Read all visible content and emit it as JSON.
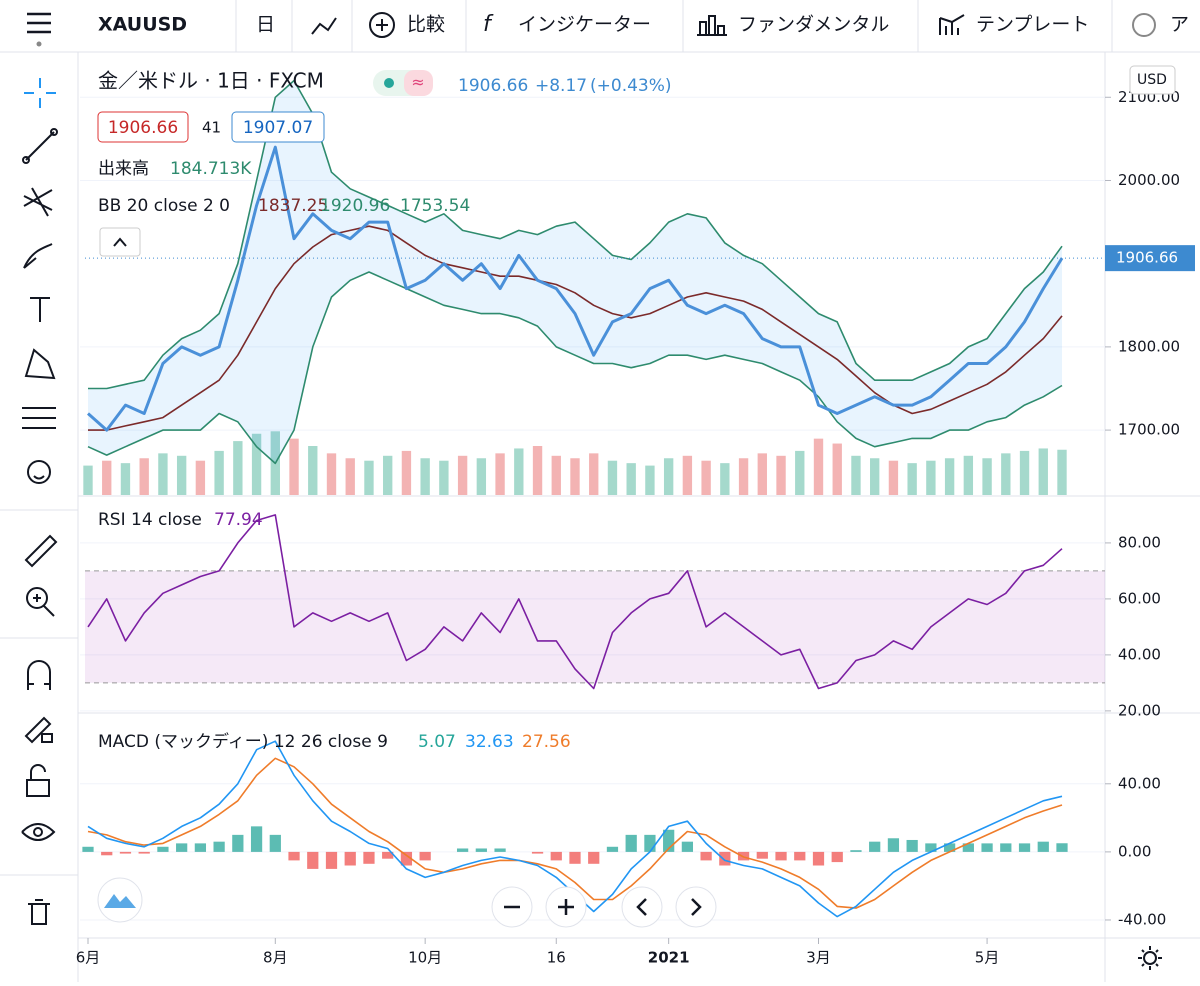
{
  "toolbar": {
    "symbol": "XAUUSD",
    "interval": "日",
    "compare": "比較",
    "indicators": "インジケーター",
    "fundamentals": "ファンダメンタル",
    "templates": "テンプレート",
    "alert": "ア"
  },
  "legend": {
    "instrument": "金／米ドル · 1日 · FXCM",
    "last": "1906.66",
    "change": "+8.17",
    "change_pct": "(+0.43%)",
    "bid": "1906.66",
    "spread": "41",
    "ask": "1907.07",
    "volume_name": "出来高",
    "volume_value": "184.713K",
    "bb_name": "BB 20 close 2 0",
    "bb_basis": "1837.25",
    "bb_upper": "1920.96",
    "bb_lower": "1753.54",
    "rsi_name": "RSI 14 close",
    "rsi_value": "77.94",
    "macd_name": "MACD (マックディー) 12 26 close 9",
    "macd_hist": "5.07",
    "macd_value": "32.63",
    "macd_signal": "27.56",
    "currency": "USD",
    "price_tag": "1906.66"
  },
  "chart_data": [
    {
      "type": "line",
      "categories": [
        "6月",
        null,
        null,
        null,
        null,
        null,
        null,
        null,
        null,
        null,
        "8月",
        null,
        null,
        null,
        null,
        null,
        null,
        null,
        "10月",
        null,
        null,
        null,
        null,
        null,
        null,
        "16",
        null,
        null,
        null,
        null,
        null,
        "2021",
        null,
        null,
        null,
        null,
        null,
        null,
        null,
        "3月",
        null,
        null,
        null,
        null,
        null,
        null,
        null,
        null,
        "5月",
        null,
        null,
        null,
        null
      ],
      "ylim": [
        1622,
        2152
      ],
      "yticks": [
        {
          "value": 1700,
          "label": "1700.00"
        },
        {
          "value": 1800,
          "label": "1800.00"
        },
        {
          "value": 2000,
          "label": "2000.00"
        },
        {
          "value": 2100,
          "label": "2100.00"
        }
      ],
      "series": [
        {
          "name": "close",
          "color": "#4a90d9",
          "values": [
            1720,
            1700,
            1730,
            1720,
            1780,
            1800,
            1790,
            1800,
            1880,
            1970,
            2040,
            1930,
            1960,
            1940,
            1930,
            1950,
            1950,
            1870,
            1880,
            1900,
            1880,
            1900,
            1870,
            1910,
            1880,
            1870,
            1840,
            1790,
            1830,
            1840,
            1870,
            1880,
            1850,
            1840,
            1850,
            1840,
            1810,
            1800,
            1800,
            1730,
            1720,
            1730,
            1740,
            1730,
            1730,
            1740,
            1760,
            1780,
            1780,
            1800,
            1830,
            1870,
            1906.66
          ]
        },
        {
          "name": "basis",
          "color": "#7b2a2a",
          "values": [
            1700,
            1700,
            1705,
            1710,
            1715,
            1730,
            1745,
            1760,
            1790,
            1830,
            1870,
            1900,
            1920,
            1935,
            1940,
            1945,
            1940,
            1925,
            1910,
            1900,
            1895,
            1890,
            1885,
            1885,
            1880,
            1875,
            1865,
            1850,
            1840,
            1835,
            1840,
            1850,
            1860,
            1865,
            1860,
            1855,
            1845,
            1830,
            1815,
            1800,
            1785,
            1765,
            1745,
            1730,
            1720,
            1725,
            1735,
            1745,
            1755,
            1770,
            1790,
            1810,
            1837.25
          ]
        },
        {
          "name": "upper",
          "color": "#2e8b6e",
          "values": [
            1750,
            1750,
            1755,
            1760,
            1790,
            1810,
            1820,
            1840,
            1900,
            2000,
            2100,
            2120,
            2080,
            2010,
            1990,
            1980,
            1970,
            1960,
            1950,
            1960,
            1940,
            1935,
            1930,
            1940,
            1935,
            1945,
            1950,
            1930,
            1910,
            1905,
            1925,
            1950,
            1960,
            1955,
            1925,
            1910,
            1900,
            1880,
            1860,
            1840,
            1830,
            1780,
            1760,
            1760,
            1760,
            1770,
            1780,
            1800,
            1810,
            1840,
            1870,
            1890,
            1920.96
          ]
        },
        {
          "name": "lower",
          "color": "#2e8b6e",
          "values": [
            1680,
            1670,
            1680,
            1690,
            1700,
            1700,
            1700,
            1720,
            1710,
            1680,
            1660,
            1700,
            1800,
            1860,
            1880,
            1890,
            1880,
            1870,
            1860,
            1850,
            1845,
            1840,
            1840,
            1835,
            1825,
            1800,
            1790,
            1780,
            1780,
            1775,
            1780,
            1790,
            1790,
            1785,
            1790,
            1785,
            1780,
            1770,
            1760,
            1740,
            1710,
            1690,
            1680,
            1685,
            1690,
            1690,
            1700,
            1700,
            1710,
            1715,
            1730,
            1740,
            1753.54
          ]
        }
      ],
      "band_fill": "#2196f3"
    },
    {
      "type": "bar",
      "ylim": [
        0,
        1800
      ],
      "up_color": "#8fcfbf",
      "down_color": "#f0a0a0",
      "values": [
        120,
        140,
        130,
        150,
        170,
        160,
        140,
        180,
        220,
        250,
        260,
        230,
        200,
        170,
        150,
        140,
        160,
        180,
        150,
        140,
        160,
        150,
        170,
        190,
        200,
        160,
        150,
        170,
        140,
        130,
        120,
        150,
        160,
        140,
        130,
        150,
        170,
        160,
        180,
        230,
        210,
        160,
        150,
        140,
        130,
        140,
        150,
        160,
        150,
        170,
        180,
        190,
        184.713
      ]
    },
    {
      "type": "line",
      "ylim": [
        19.6,
        96.4
      ],
      "yticks": [
        {
          "value": 20,
          "label": "20.00"
        },
        {
          "value": 40,
          "label": "40.00"
        },
        {
          "value": 60,
          "label": "60.00"
        },
        {
          "value": 80,
          "label": "80.00"
        }
      ],
      "band_levels": [
        30,
        70
      ],
      "band_color": "#9c27b0",
      "series": [
        {
          "name": "RSI",
          "color": "#7b1fa2",
          "values": [
            50,
            60,
            45,
            55,
            62,
            65,
            68,
            70,
            80,
            88,
            90,
            50,
            55,
            52,
            55,
            52,
            55,
            38,
            42,
            50,
            45,
            55,
            48,
            60,
            45,
            45,
            35,
            28,
            48,
            55,
            60,
            62,
            70,
            50,
            55,
            50,
            45,
            40,
            42,
            28,
            30,
            38,
            40,
            45,
            42,
            50,
            55,
            60,
            58,
            62,
            70,
            72,
            77.94
          ]
        }
      ]
    },
    {
      "type": "line",
      "ylim": [
        -50,
        81
      ],
      "yticks": [
        {
          "value": -40,
          "label": "-40.00"
        },
        {
          "value": 0,
          "label": "0.00"
        },
        {
          "value": 40,
          "label": "40.00"
        }
      ],
      "histogram": {
        "up_color": "#26a69a",
        "down_color": "#ef5350",
        "values": [
          3,
          -2,
          -1,
          -1,
          3,
          5,
          5,
          6,
          10,
          15,
          10,
          -5,
          -10,
          -10,
          -8,
          -7,
          -4,
          -8,
          -5,
          0,
          2,
          2,
          2,
          0,
          -1,
          -5,
          -7,
          -7,
          3,
          10,
          10,
          13,
          6,
          -5,
          -8,
          -5,
          -4,
          -5,
          -5,
          -8,
          -6,
          1,
          6,
          8,
          7,
          5,
          5,
          5,
          5,
          5,
          5,
          6,
          5.07
        ]
      },
      "series": [
        {
          "name": "MACD",
          "color": "#2196f3",
          "values": [
            15,
            8,
            5,
            3,
            8,
            15,
            20,
            28,
            40,
            60,
            65,
            45,
            30,
            18,
            12,
            5,
            2,
            -10,
            -15,
            -12,
            -8,
            -5,
            -3,
            -5,
            -8,
            -15,
            -25,
            -35,
            -25,
            -10,
            0,
            15,
            18,
            5,
            -5,
            -8,
            -10,
            -15,
            -20,
            -30,
            -38,
            -32,
            -22,
            -12,
            -5,
            0,
            5,
            10,
            15,
            20,
            25,
            30,
            32.63
          ]
        },
        {
          "name": "Signal",
          "color": "#ef7c2a",
          "values": [
            12,
            10,
            6,
            4,
            5,
            10,
            15,
            22,
            30,
            45,
            55,
            50,
            40,
            28,
            20,
            12,
            6,
            -2,
            -10,
            -12,
            -10,
            -7,
            -5,
            -5,
            -7,
            -10,
            -18,
            -28,
            -28,
            -20,
            -10,
            2,
            12,
            10,
            3,
            -3,
            -6,
            -10,
            -15,
            -22,
            -32,
            -33,
            -28,
            -20,
            -12,
            -5,
            0,
            5,
            10,
            15,
            20,
            24,
            27.56
          ]
        }
      ]
    }
  ]
}
